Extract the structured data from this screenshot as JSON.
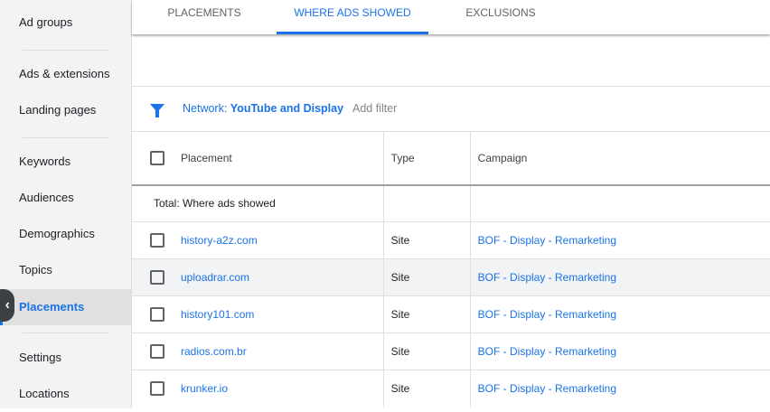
{
  "sidebar": {
    "items": [
      {
        "label": "Ad groups"
      },
      {
        "label": "Ads & extensions"
      },
      {
        "label": "Landing pages"
      },
      {
        "label": "Keywords"
      },
      {
        "label": "Audiences"
      },
      {
        "label": "Demographics"
      },
      {
        "label": "Topics"
      },
      {
        "label": "Placements",
        "selected": true
      },
      {
        "label": "Settings"
      },
      {
        "label": "Locations"
      }
    ],
    "collapse_icon": "chevron-left-icon"
  },
  "tabs": [
    {
      "label": "PLACEMENTS"
    },
    {
      "label": "WHERE ADS SHOWED",
      "active": true
    },
    {
      "label": "EXCLUSIONS"
    }
  ],
  "filter": {
    "icon": "filter-icon",
    "prefix": "Network: ",
    "value": "YouTube and Display",
    "add": "Add filter"
  },
  "table": {
    "headers": [
      "Placement",
      "Type",
      "Campaign"
    ],
    "total": "Total: Where ads showed",
    "rows": [
      {
        "placement": "history-a2z.com",
        "type": "Site",
        "campaign": "BOF - Display - Remarketing"
      },
      {
        "placement": "uploadrar.com",
        "type": "Site",
        "campaign": "BOF - Display - Remarketing"
      },
      {
        "placement": "history101.com",
        "type": "Site",
        "campaign": "BOF - Display - Remarketing"
      },
      {
        "placement": "radios.com.br",
        "type": "Site",
        "campaign": "BOF - Display - Remarketing"
      },
      {
        "placement": "krunker.io",
        "type": "Site",
        "campaign": "BOF - Display - Remarketing"
      }
    ]
  },
  "colors": {
    "accent": "#1a73e8"
  }
}
